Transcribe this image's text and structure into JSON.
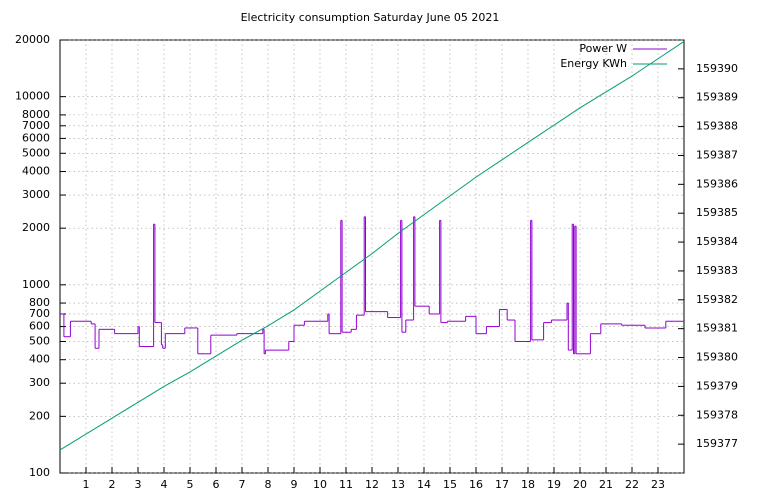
{
  "chart_data": {
    "type": "line",
    "title": "Electricity consumption Saturday June 05 2021",
    "xlim": [
      0,
      24
    ],
    "xticks": [
      1,
      2,
      3,
      4,
      5,
      6,
      7,
      8,
      9,
      10,
      11,
      12,
      13,
      14,
      15,
      16,
      17,
      18,
      19,
      20,
      21,
      22,
      23
    ],
    "ylim": [
      100,
      20000
    ],
    "ylog": true,
    "yticks": [
      100,
      200,
      300,
      400,
      500,
      600,
      700,
      800,
      1000,
      2000,
      3000,
      4000,
      5000,
      6000,
      7000,
      8000,
      10000,
      20000
    ],
    "y2lim": [
      159376,
      159391
    ],
    "y2ticks": [
      159377,
      159378,
      159379,
      159380,
      159381,
      159382,
      159383,
      159384,
      159385,
      159386,
      159387,
      159388,
      159389,
      159390
    ],
    "grid": true,
    "legend": "top-right",
    "series": [
      {
        "name": "Power W",
        "color": "#9400d3",
        "steps": true,
        "x": [
          0,
          0.15,
          0.4,
          1.2,
          1.35,
          1.5,
          2.1,
          3.0,
          3.05,
          3.6,
          3.65,
          3.9,
          3.95,
          4.05,
          4.8,
          5.3,
          5.8,
          6.8,
          7.8,
          7.85,
          7.9,
          8.8,
          9.0,
          9.4,
          10.3,
          10.35,
          10.8,
          10.85,
          11.2,
          11.4,
          11.7,
          11.75,
          12.6,
          13.1,
          13.15,
          13.3,
          13.6,
          13.65,
          14.2,
          14.6,
          14.65,
          14.9,
          15.6,
          16.0,
          16.4,
          16.9,
          17.2,
          17.5,
          18.1,
          18.15,
          18.6,
          18.9,
          19.5,
          19.55,
          19.7,
          19.75,
          19.8,
          19.85,
          20.4,
          20.8,
          21.6,
          22.5,
          23.3,
          24
        ],
        "values": [
          700,
          530,
          640,
          620,
          460,
          580,
          550,
          600,
          470,
          2100,
          630,
          480,
          460,
          550,
          590,
          430,
          540,
          550,
          580,
          430,
          450,
          500,
          610,
          640,
          700,
          550,
          2200,
          560,
          580,
          690,
          2300,
          720,
          670,
          2200,
          560,
          650,
          2300,
          770,
          700,
          2200,
          630,
          640,
          680,
          550,
          600,
          740,
          650,
          500,
          2200,
          510,
          630,
          650,
          800,
          450,
          2100,
          430,
          2050,
          430,
          550,
          620,
          610,
          590,
          640,
          640
        ]
      },
      {
        "name": "Energy KWh",
        "color": "#009e73",
        "axis": "y2",
        "x": [
          0,
          1,
          2,
          3,
          4,
          5,
          6,
          7,
          8,
          9,
          10,
          11,
          12,
          13,
          14,
          15,
          16,
          17,
          18,
          19,
          20,
          21,
          22,
          23,
          24
        ],
        "values": [
          159376.8,
          159377.35,
          159377.9,
          159378.45,
          159379.0,
          159379.5,
          159380.05,
          159380.6,
          159381.1,
          159381.65,
          159382.3,
          159382.95,
          159383.6,
          159384.3,
          159384.95,
          159385.6,
          159386.25,
          159386.85,
          159387.45,
          159388.05,
          159388.65,
          159389.2,
          159389.75,
          159390.35,
          159390.95
        ]
      }
    ]
  }
}
